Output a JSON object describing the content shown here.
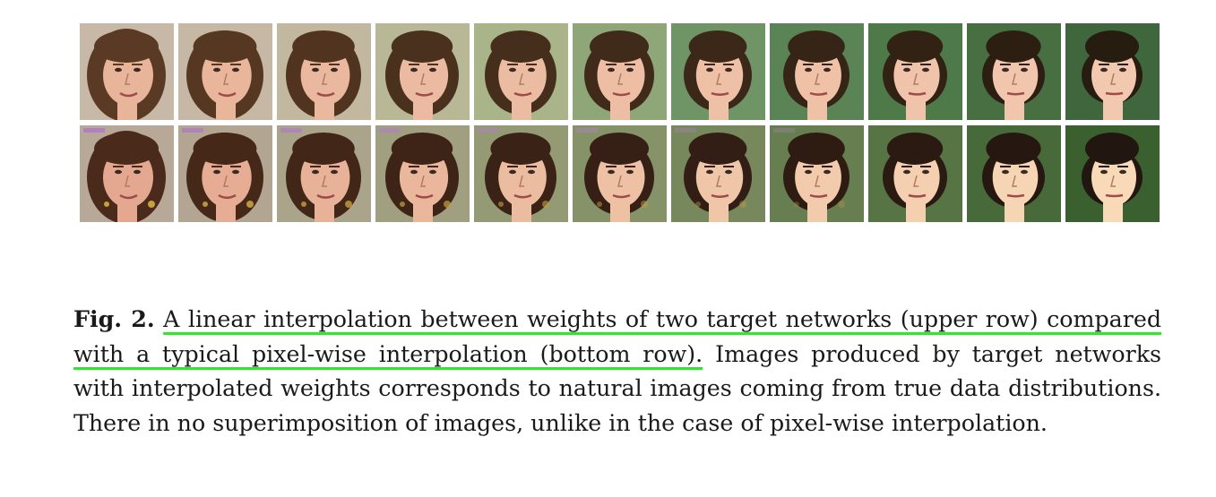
{
  "figure": {
    "rows": [
      {
        "row": "upper",
        "description_key": "network-weight-interpolation",
        "frames": 11,
        "background_colors": [
          "#c8b8a8",
          "#c6b8a4",
          "#c2b8a0",
          "#b9b896",
          "#a9b488",
          "#8ea678",
          "#6f9466",
          "#5a8455",
          "#4e7a4a",
          "#476f42",
          "#3f663c"
        ],
        "skin_colors": [
          "#e8b49a",
          "#e9b69c",
          "#eab89e",
          "#ebbaa0",
          "#ecbca2",
          "#edbea4",
          "#eec0a6",
          "#efc2a8",
          "#f0c4aa",
          "#f1c6ac",
          "#f2c8ae"
        ],
        "hair_colors": [
          "#5a3a24",
          "#553722",
          "#503420",
          "#4a311e",
          "#452e1c",
          "#402b1a",
          "#3b2818",
          "#362516",
          "#312214",
          "#2c1f12",
          "#271c10"
        ]
      },
      {
        "row": "lower",
        "description_key": "pixel-wise-interpolation",
        "frames": 11,
        "background_colors": [
          "#b8a898",
          "#b2a692",
          "#aaa48a",
          "#a0a080",
          "#949a74",
          "#869268",
          "#76885c",
          "#667e50",
          "#567444",
          "#486a3a",
          "#3a6030"
        ],
        "skin_colors": [
          "#e4a890",
          "#e6ad94",
          "#e8b298",
          "#eab79c",
          "#ecbca0",
          "#eec1a4",
          "#f0c6a8",
          "#f2cbac",
          "#f4d0b0",
          "#f6d5b4",
          "#f8dab8"
        ],
        "hair_colors": [
          "#4a2a1a",
          "#462819",
          "#422618",
          "#3e2417",
          "#3a2216",
          "#362015",
          "#321e14",
          "#2e1c13",
          "#2a1a12",
          "#261811",
          "#221610"
        ]
      }
    ]
  },
  "caption": {
    "label": "Fig. 2.",
    "highlighted": "A linear interpolation between weights of two target networks (upper row) compared with a typical pixel-wise interpolation (bottom row).",
    "rest": "Images produced by target networks with interpolated weights corresponds to natural images coming from true data distributions. There in no superimposition of images, unlike in the case of pixel-wise interpolation."
  }
}
